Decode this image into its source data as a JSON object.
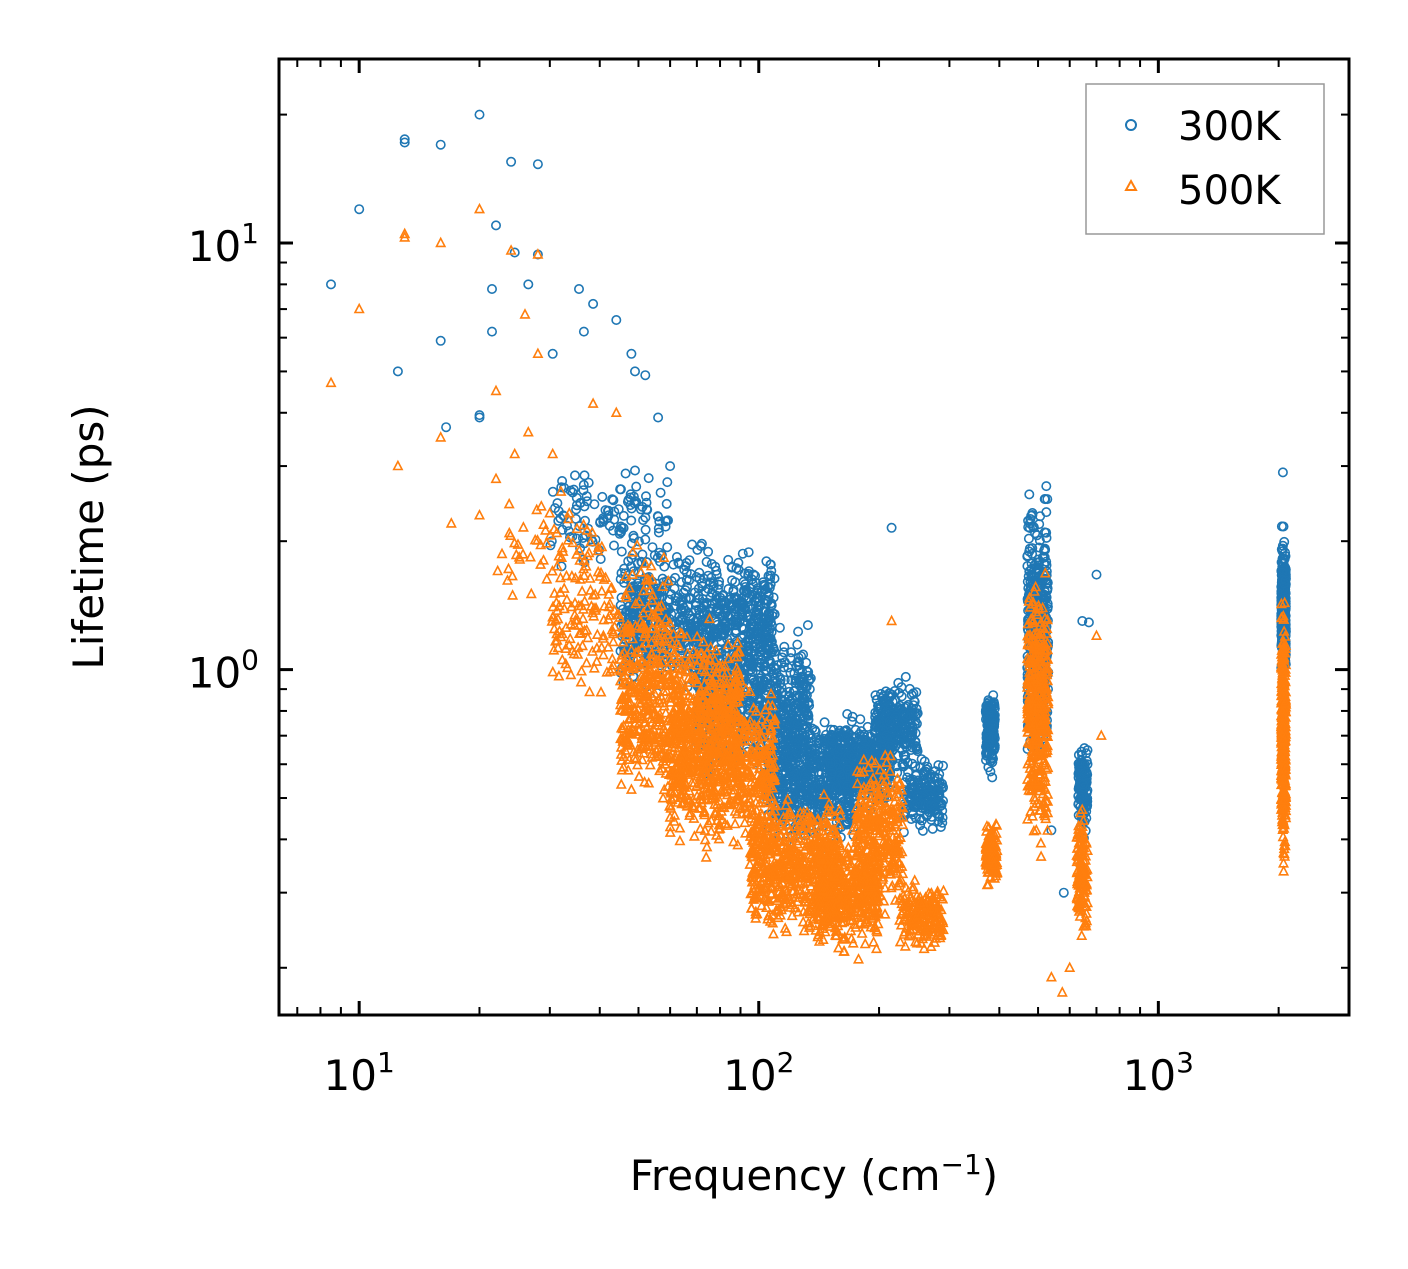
{
  "chart_data": {
    "type": "scatter",
    "xscale": "log",
    "yscale": "log",
    "xlabel": "Frequency (cm",
    "xlabel_sup": "−1",
    "xlabel_end": ")",
    "ylabel": "Lifetime (ps)",
    "xlim": [
      6.3,
      3000
    ],
    "ylim": [
      0.155,
      27
    ],
    "xticks": [
      {
        "base": "10",
        "exp": "1",
        "value": 10
      },
      {
        "base": "10",
        "exp": "2",
        "value": 100
      },
      {
        "base": "10",
        "exp": "3",
        "value": 1000
      }
    ],
    "yticks": [
      {
        "base": "10",
        "exp": "0",
        "value": 1
      },
      {
        "base": "10",
        "exp": "1",
        "value": 10
      }
    ],
    "legend_position": "top-right",
    "series": [
      {
        "name": "300K",
        "marker": "circle",
        "color": "#1f77b4",
        "points": [
          [
            8.5,
            8.0
          ],
          [
            10.0,
            12.0
          ],
          [
            12.5,
            5.0
          ],
          [
            13.0,
            17.5
          ],
          [
            13.0,
            17.2
          ],
          [
            16.0,
            17.0
          ],
          [
            16.0,
            5.9
          ],
          [
            16.5,
            3.7
          ],
          [
            20.0,
            20.0
          ],
          [
            20.0,
            3.9
          ],
          [
            20.0,
            3.95
          ],
          [
            21.5,
            7.8
          ],
          [
            21.5,
            6.2
          ],
          [
            22.0,
            11.0
          ],
          [
            24.0,
            15.5
          ],
          [
            24.5,
            9.5
          ],
          [
            28.0,
            15.3
          ],
          [
            28.0,
            9.4
          ],
          [
            26.5,
            8.0
          ],
          [
            30.5,
            5.5
          ],
          [
            35.5,
            7.8
          ],
          [
            36.5,
            6.2
          ],
          [
            38.5,
            7.2
          ],
          [
            44.0,
            6.6
          ],
          [
            48.0,
            5.5
          ],
          [
            49.0,
            5.0
          ],
          [
            52.0,
            4.9
          ],
          [
            56.0,
            3.9
          ],
          [
            60.0,
            3.0
          ],
          [
            215.0,
            2.15
          ],
          [
            700.0,
            1.67
          ],
          [
            645.0,
            1.3
          ],
          [
            670.0,
            1.29
          ],
          [
            525.0,
            1.1
          ],
          [
            580.0,
            0.3
          ],
          [
            2050.0,
            2.9
          ],
          [
            640.0,
            0.43
          ],
          [
            540.0,
            0.42
          ]
        ],
        "clusters": [
          {
            "x": [
              30,
              60
            ],
            "y": [
              1.6,
              3.2
            ],
            "n": 130
          },
          {
            "x": [
              45,
              110
            ],
            "y": [
              0.8,
              2.1
            ],
            "n": 800
          },
          {
            "x": [
              70,
              135
            ],
            "y": [
              0.5,
              1.4
            ],
            "n": 700
          },
          {
            "x": [
              105,
              175
            ],
            "y": [
              0.36,
              0.85
            ],
            "n": 600
          },
          {
            "x": [
              150,
              215
            ],
            "y": [
              0.45,
              0.8
            ],
            "n": 400
          },
          {
            "x": [
              195,
              250
            ],
            "y": [
              0.55,
              1.0
            ],
            "n": 260
          },
          {
            "x": [
              230,
              290
            ],
            "y": [
              0.4,
              0.65
            ],
            "n": 180
          },
          {
            "x": [
              370,
              390
            ],
            "y": [
              0.55,
              0.93
            ],
            "n": 150
          },
          {
            "x": [
              470,
              530
            ],
            "y": [
              0.5,
              3.0
            ],
            "n": 400
          },
          {
            "x": [
              630,
              665
            ],
            "y": [
              0.38,
              0.75
            ],
            "n": 120
          },
          {
            "x": [
              2030,
              2085
            ],
            "y": [
              0.9,
              2.2
            ],
            "n": 400
          }
        ]
      },
      {
        "name": "500K",
        "marker": "triangle",
        "color": "#ff7f0e",
        "points": [
          [
            8.5,
            4.7
          ],
          [
            10.0,
            7.0
          ],
          [
            12.5,
            3.0
          ],
          [
            13.0,
            10.5
          ],
          [
            13.0,
            10.3
          ],
          [
            16.0,
            10.0
          ],
          [
            16.0,
            3.5
          ],
          [
            17.0,
            2.2
          ],
          [
            20.0,
            12.0
          ],
          [
            20.0,
            2.3
          ],
          [
            24.0,
            9.6
          ],
          [
            26.0,
            6.8
          ],
          [
            28.0,
            9.4
          ],
          [
            28.0,
            5.5
          ],
          [
            22.0,
            4.5
          ],
          [
            24.5,
            3.2
          ],
          [
            22.0,
            2.8
          ],
          [
            26.5,
            3.6
          ],
          [
            30.5,
            3.2
          ],
          [
            38.5,
            4.2
          ],
          [
            44.0,
            4.0
          ],
          [
            60.0,
            0.48
          ],
          [
            60.0,
            0.45
          ],
          [
            215.0,
            1.3
          ],
          [
            540.0,
            0.19
          ],
          [
            650.0,
            0.25
          ],
          [
            700.0,
            1.2
          ],
          [
            720.0,
            0.7
          ],
          [
            575.0,
            0.175
          ],
          [
            600.0,
            0.2
          ]
        ],
        "clusters": [
          {
            "x": [
              22,
              42
            ],
            "y": [
              1.3,
              2.8
            ],
            "n": 60
          },
          {
            "x": [
              30,
              60
            ],
            "y": [
              0.8,
              2.2
            ],
            "n": 200
          },
          {
            "x": [
              45,
              90
            ],
            "y": [
              0.45,
              1.4
            ],
            "n": 700
          },
          {
            "x": [
              60,
              110
            ],
            "y": [
              0.35,
              1.0
            ],
            "n": 600
          },
          {
            "x": [
              95,
              160
            ],
            "y": [
              0.22,
              0.55
            ],
            "n": 600
          },
          {
            "x": [
              140,
              200
            ],
            "y": [
              0.2,
              0.45
            ],
            "n": 400
          },
          {
            "x": [
              175,
              230
            ],
            "y": [
              0.25,
              0.7
            ],
            "n": 300
          },
          {
            "x": [
              225,
              290
            ],
            "y": [
              0.21,
              0.33
            ],
            "n": 180
          },
          {
            "x": [
              370,
              395
            ],
            "y": [
              0.3,
              0.45
            ],
            "n": 130
          },
          {
            "x": [
              470,
              530
            ],
            "y": [
              0.32,
              2.0
            ],
            "n": 400
          },
          {
            "x": [
              625,
              665
            ],
            "y": [
              0.22,
              0.5
            ],
            "n": 130
          },
          {
            "x": [
              2030,
              2085
            ],
            "y": [
              0.3,
              1.6
            ],
            "n": 400
          }
        ]
      }
    ]
  }
}
